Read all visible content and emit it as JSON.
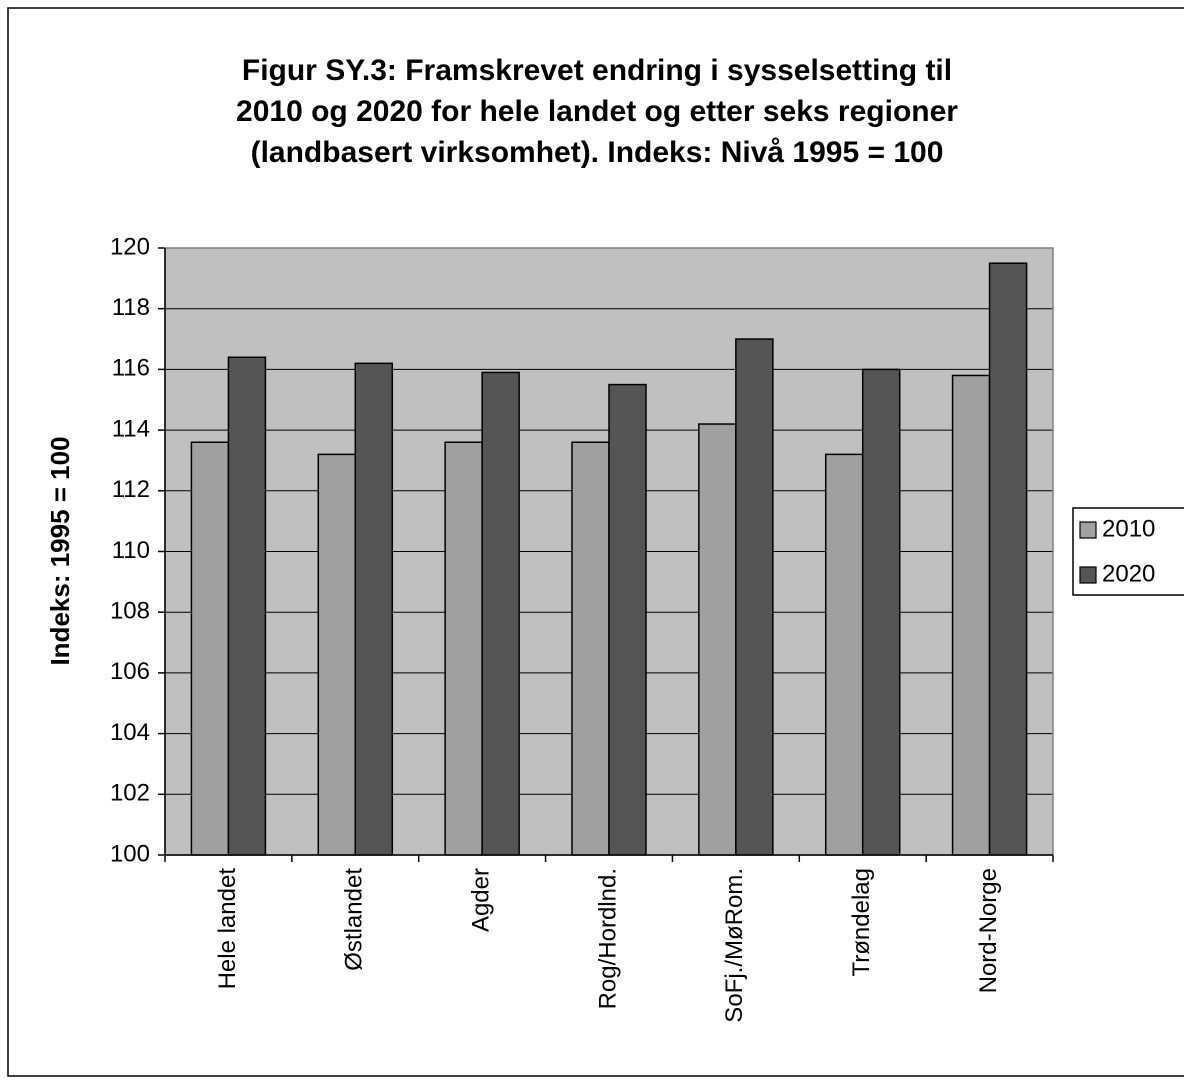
{
  "chart_data": {
    "type": "bar",
    "title": [
      "Figur SY.3: Framskrevet endring i sysselsetting til",
      "2010 og 2020 for hele landet og etter seks regioner",
      "(landbasert virksomhet).  Indeks: Nivå 1995 = 100"
    ],
    "y_label": "Indeks: 1995 = 100",
    "categories": [
      "Hele landet",
      "Østlandet",
      "Agder",
      "Rog/Hordlnd.",
      "SoFj./MøRom.",
      "Trøndelag",
      "Nord-Norge"
    ],
    "series": [
      {
        "name": "2010",
        "color": "#a0a0a0",
        "values": [
          113.6,
          113.2,
          113.6,
          113.6,
          114.2,
          113.2,
          115.8
        ]
      },
      {
        "name": "2020",
        "color": "#555555",
        "values": [
          116.4,
          116.2,
          115.9,
          115.5,
          117.0,
          116.0,
          119.5
        ]
      }
    ],
    "ylim": [
      100,
      120
    ],
    "yticks": [
      100,
      102,
      104,
      106,
      108,
      110,
      112,
      114,
      116,
      118,
      120
    ],
    "grid": true,
    "plot_background": "#c0c0c0",
    "legend": "right"
  }
}
